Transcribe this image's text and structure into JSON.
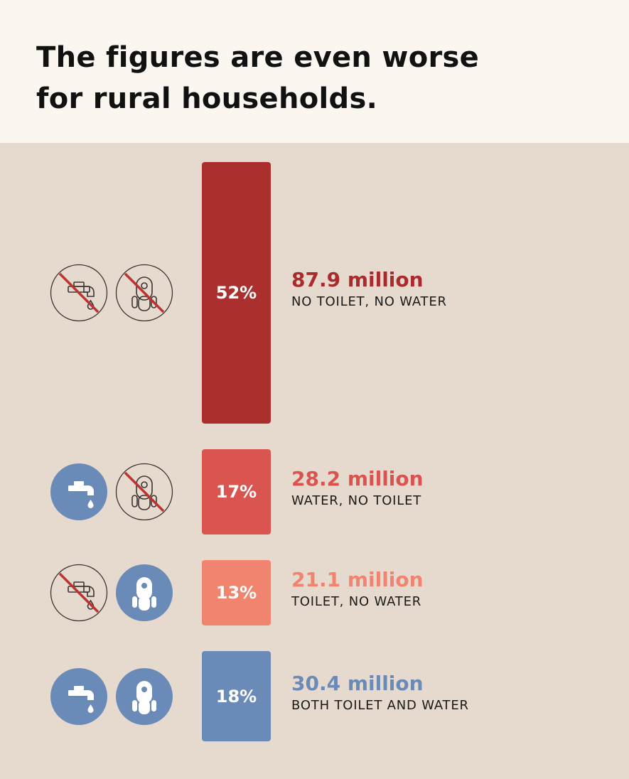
{
  "title_line1": "The figures are even worse",
  "title_line2": "for rural households.",
  "chart_data": {
    "type": "bar",
    "title": "The figures are even worse for rural households.",
    "categories": [
      "NO TOILET, NO WATER",
      "WATER, NO TOILET",
      "TOILET, NO WATER",
      "BOTH TOILET AND WATER"
    ],
    "values": [
      52,
      17,
      13,
      18
    ],
    "value_labels": [
      "52%",
      "17%",
      "13%",
      "18%"
    ],
    "counts": [
      "87.9 million",
      "28.2 million",
      "21.1 million",
      "30.4 million"
    ],
    "unit": "% of rural households"
  },
  "rows": [
    {
      "label": "NO TOILET, NO WATER",
      "value": 52,
      "percent": "52%",
      "count": "87.9 million",
      "water": false,
      "toilet": false,
      "color": "#aa2f2d",
      "count_color": "#aa2b2b"
    },
    {
      "label": "WATER, NO TOILET",
      "value": 17,
      "percent": "17%",
      "count": "28.2 million",
      "water": true,
      "toilet": false,
      "color": "#da5550",
      "count_color": "#d9534f"
    },
    {
      "label": "TOILET, NO WATER",
      "value": 13,
      "percent": "13%",
      "count": "21.1 million",
      "water": false,
      "toilet": true,
      "color": "#f0846f",
      "count_color": "#f08470"
    },
    {
      "label": "BOTH TOILET AND WATER",
      "value": 18,
      "percent": "18%",
      "count": "30.4 million",
      "water": true,
      "toilet": true,
      "color": "#6a8ab8",
      "count_color": "#6a8ab8"
    }
  ],
  "icons": {
    "no_water": "crossed-out-tap-icon",
    "water": "tap-icon",
    "no_toilet": "crossed-out-toilet-icon",
    "toilet": "toilet-icon",
    "icon_blue": "#6a8ab8",
    "cross_red": "#c0312f",
    "outline": "#3a3432"
  }
}
